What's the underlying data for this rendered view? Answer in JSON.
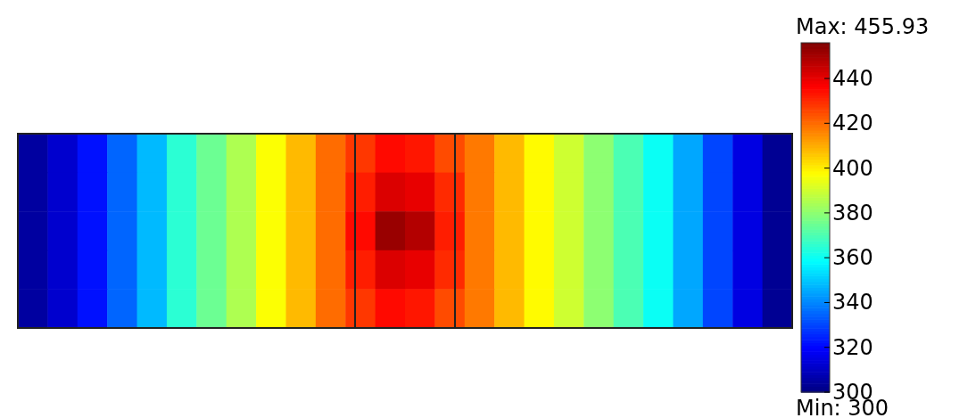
{
  "chart_data": {
    "type": "heatmap",
    "categories": [
      null,
      null,
      null,
      null,
      null,
      null,
      null,
      null,
      null,
      null,
      null,
      null,
      null,
      null,
      null,
      null,
      null,
      null,
      null,
      null,
      null,
      null,
      null,
      null,
      null,
      null
    ],
    "y_categories": [
      null,
      null,
      null,
      null,
      null
    ],
    "cells": [
      [
        305,
        312,
        322,
        335,
        348,
        365,
        375,
        385,
        397,
        408,
        420,
        428,
        435,
        433,
        425,
        418,
        408,
        398,
        390,
        380,
        370,
        360,
        345,
        330,
        315,
        303
      ],
      [
        305,
        312,
        322,
        335,
        348,
        365,
        375,
        385,
        397,
        408,
        420,
        432,
        442,
        440,
        430,
        418,
        408,
        398,
        390,
        380,
        370,
        360,
        345,
        330,
        315,
        303
      ],
      [
        305,
        312,
        322,
        335,
        348,
        365,
        375,
        385,
        397,
        408,
        420,
        435,
        452,
        448,
        432,
        418,
        408,
        398,
        390,
        380,
        370,
        360,
        345,
        330,
        315,
        303
      ],
      [
        305,
        312,
        322,
        335,
        348,
        365,
        375,
        385,
        397,
        408,
        420,
        432,
        442,
        440,
        430,
        418,
        408,
        398,
        390,
        380,
        370,
        360,
        345,
        330,
        315,
        303
      ],
      [
        305,
        312,
        322,
        335,
        348,
        365,
        375,
        385,
        397,
        408,
        420,
        428,
        435,
        433,
        425,
        418,
        408,
        398,
        390,
        380,
        370,
        360,
        345,
        330,
        315,
        303
      ]
    ],
    "clim": [
      300,
      455.93
    ],
    "cticks": [
      300,
      320,
      340,
      360,
      380,
      400,
      420,
      440
    ],
    "annotations": [
      "Max: 455.93",
      "Min: 300"
    ]
  }
}
